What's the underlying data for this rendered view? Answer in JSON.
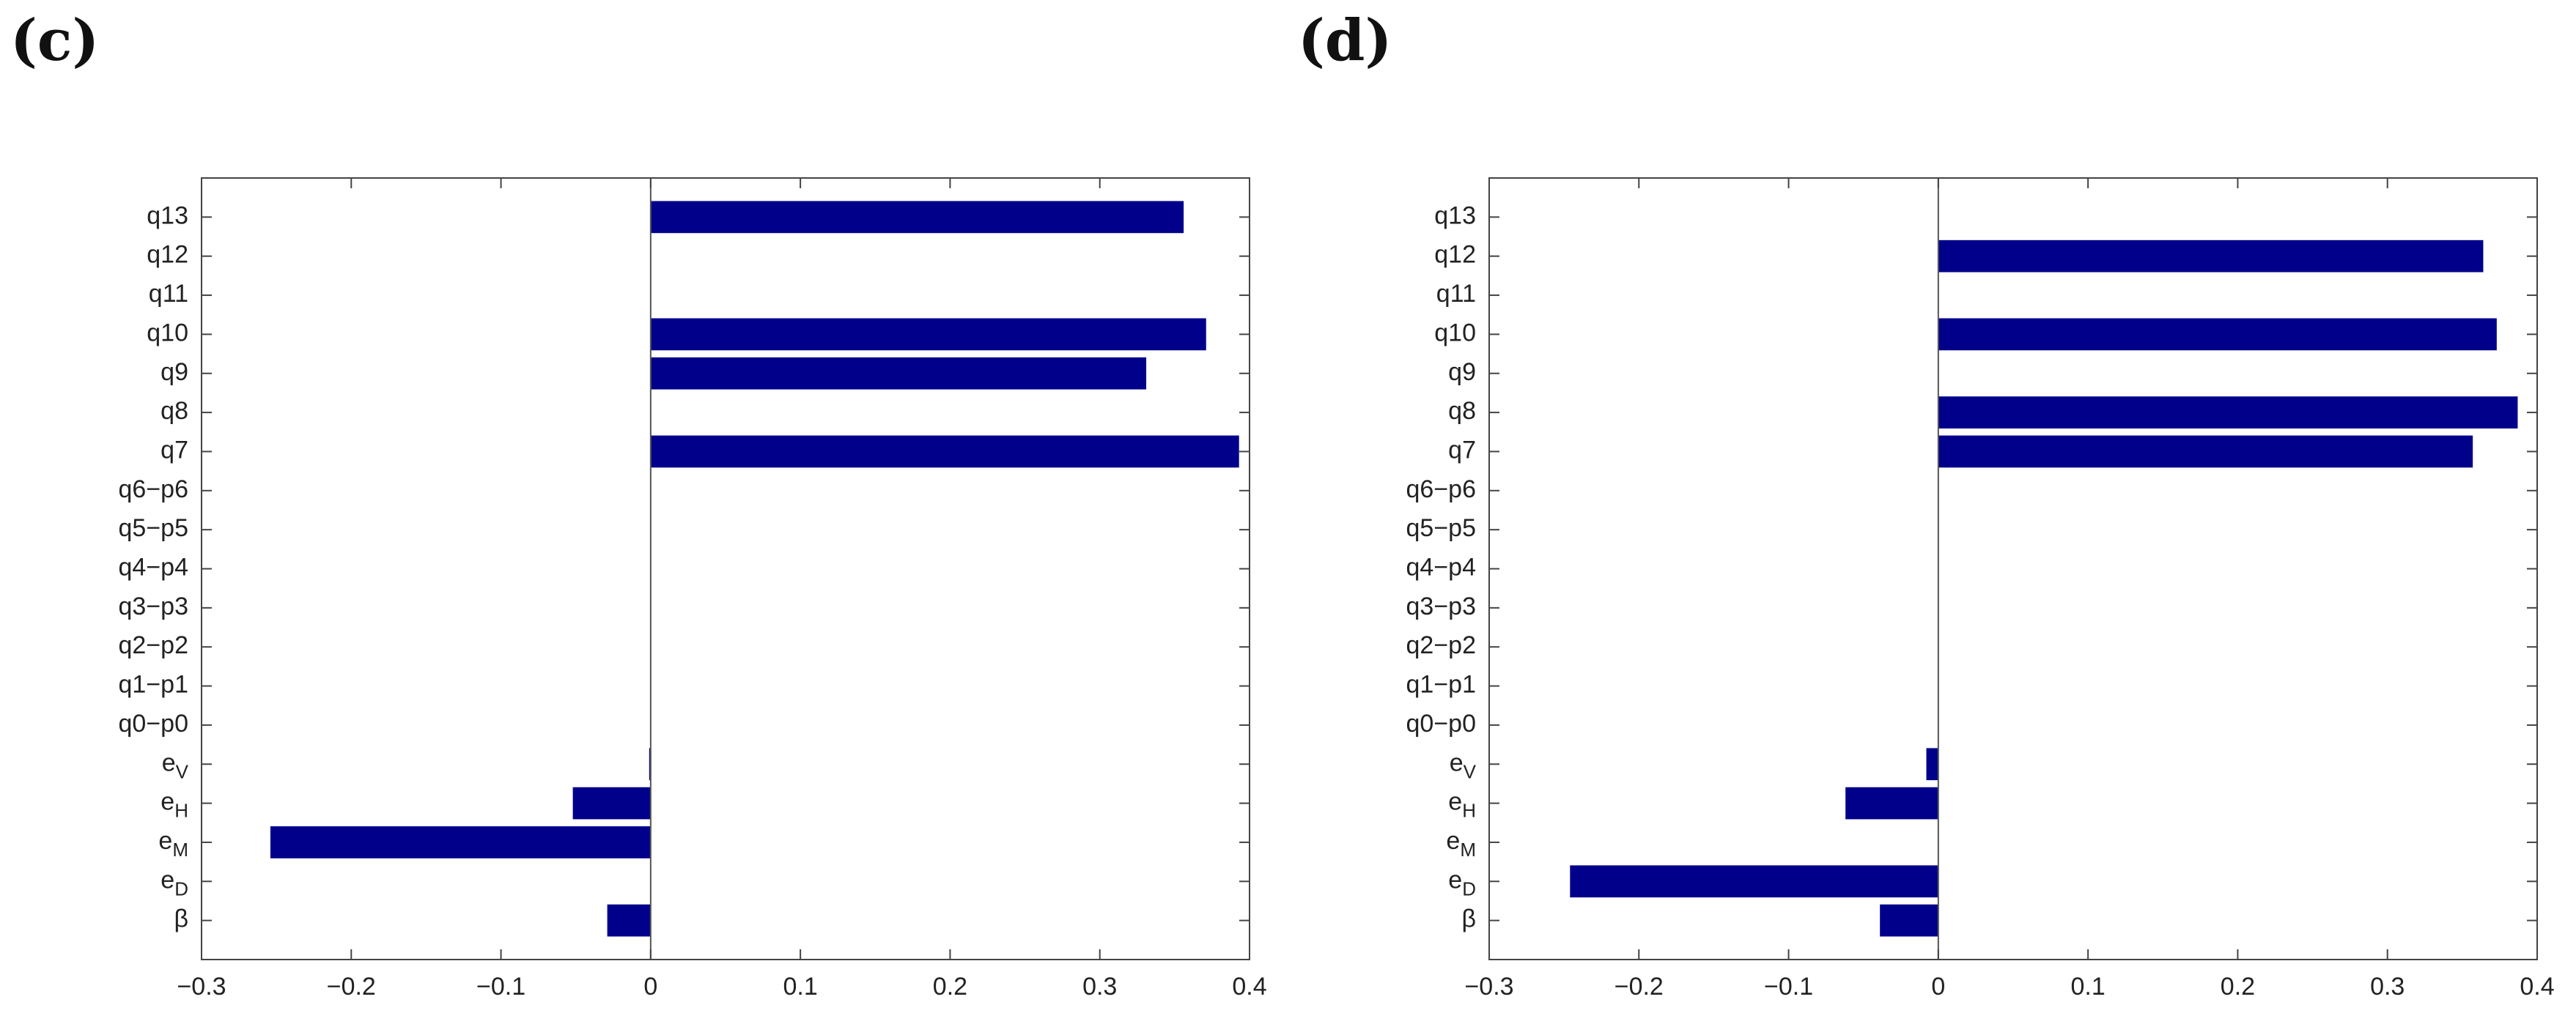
{
  "chart_data": [
    {
      "panel_label": "(c)",
      "type": "bar",
      "orientation": "horizontal",
      "title": "",
      "xlabel": "",
      "ylabel": "",
      "xlim": [
        -0.3,
        0.4
      ],
      "xticks": [
        "−0.3",
        "−0.2",
        "−0.1",
        "0",
        "0.1",
        "0.2",
        "0.3",
        "0.4"
      ],
      "xtick_values": [
        -0.3,
        -0.2,
        -0.1,
        0,
        0.1,
        0.2,
        0.3,
        0.4
      ],
      "categories": [
        {
          "base": "β",
          "sub": ""
        },
        {
          "base": "e",
          "sub": "D"
        },
        {
          "base": "e",
          "sub": "M"
        },
        {
          "base": "e",
          "sub": "H"
        },
        {
          "base": "e",
          "sub": "V"
        },
        {
          "base": "q0−p0",
          "sub": ""
        },
        {
          "base": "q1−p1",
          "sub": ""
        },
        {
          "base": "q2−p2",
          "sub": ""
        },
        {
          "base": "q3−p3",
          "sub": ""
        },
        {
          "base": "q4−p4",
          "sub": ""
        },
        {
          "base": "q5−p5",
          "sub": ""
        },
        {
          "base": "q6−p6",
          "sub": ""
        },
        {
          "base": "q7",
          "sub": ""
        },
        {
          "base": "q8",
          "sub": ""
        },
        {
          "base": "q9",
          "sub": ""
        },
        {
          "base": "q10",
          "sub": ""
        },
        {
          "base": "q11",
          "sub": ""
        },
        {
          "base": "q12",
          "sub": ""
        },
        {
          "base": "q13",
          "sub": ""
        }
      ],
      "values": [
        -0.029,
        0,
        -0.254,
        -0.052,
        -0.001,
        0,
        0,
        0,
        0,
        0,
        0,
        0,
        0.393,
        0,
        0.331,
        0.371,
        0,
        0,
        0.356
      ],
      "bar_color": "#00008B",
      "grid": false
    },
    {
      "panel_label": "(d)",
      "type": "bar",
      "orientation": "horizontal",
      "title": "",
      "xlabel": "",
      "ylabel": "",
      "xlim": [
        -0.3,
        0.4
      ],
      "xticks": [
        "−0.3",
        "−0.2",
        "−0.1",
        "0",
        "0.1",
        "0.2",
        "0.3",
        "0.4"
      ],
      "xtick_values": [
        -0.3,
        -0.2,
        -0.1,
        0,
        0.1,
        0.2,
        0.3,
        0.4
      ],
      "categories": [
        {
          "base": "β",
          "sub": ""
        },
        {
          "base": "e",
          "sub": "D"
        },
        {
          "base": "e",
          "sub": "M"
        },
        {
          "base": "e",
          "sub": "H"
        },
        {
          "base": "e",
          "sub": "V"
        },
        {
          "base": "q0−p0",
          "sub": ""
        },
        {
          "base": "q1−p1",
          "sub": ""
        },
        {
          "base": "q2−p2",
          "sub": ""
        },
        {
          "base": "q3−p3",
          "sub": ""
        },
        {
          "base": "q4−p4",
          "sub": ""
        },
        {
          "base": "q5−p5",
          "sub": ""
        },
        {
          "base": "q6−p6",
          "sub": ""
        },
        {
          "base": "q7",
          "sub": ""
        },
        {
          "base": "q8",
          "sub": ""
        },
        {
          "base": "q9",
          "sub": ""
        },
        {
          "base": "q10",
          "sub": ""
        },
        {
          "base": "q11",
          "sub": ""
        },
        {
          "base": "q12",
          "sub": ""
        },
        {
          "base": "q13",
          "sub": ""
        }
      ],
      "values": [
        -0.039,
        -0.246,
        0,
        -0.062,
        -0.008,
        0,
        0,
        0,
        0,
        0,
        0,
        0,
        0.357,
        0.387,
        0,
        0.373,
        0,
        0.364,
        0
      ],
      "bar_color": "#00008B",
      "grid": false
    }
  ]
}
